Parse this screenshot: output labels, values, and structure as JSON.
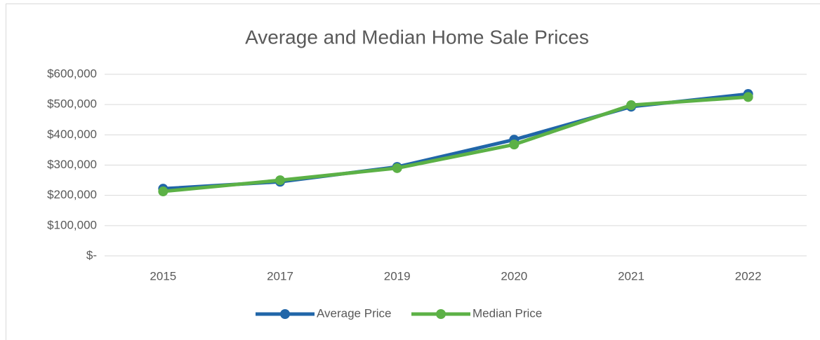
{
  "chart_data": {
    "type": "line",
    "title": "Average and Median Home Sale Prices",
    "categories": [
      "2015",
      "2017",
      "2019",
      "2020",
      "2021",
      "2022"
    ],
    "series": [
      {
        "name": "Average Price",
        "color": "#2166a8",
        "values": [
          222000,
          245000,
          294000,
          384000,
          493000,
          535000
        ]
      },
      {
        "name": "Median Price",
        "color": "#5cb146",
        "values": [
          213000,
          250000,
          290000,
          368000,
          498000,
          525000
        ]
      }
    ],
    "ylim": [
      0,
      600000
    ],
    "yticks": [
      {
        "value": 0,
        "label": "$-"
      },
      {
        "value": 100000,
        "label": "$100,000"
      },
      {
        "value": 200000,
        "label": "$200,000"
      },
      {
        "value": 300000,
        "label": "$300,000"
      },
      {
        "value": 400000,
        "label": "$400,000"
      },
      {
        "value": 500000,
        "label": "$500,000"
      },
      {
        "value": 600000,
        "label": "$600,000"
      }
    ],
    "grid": true,
    "legend": "bottom"
  }
}
